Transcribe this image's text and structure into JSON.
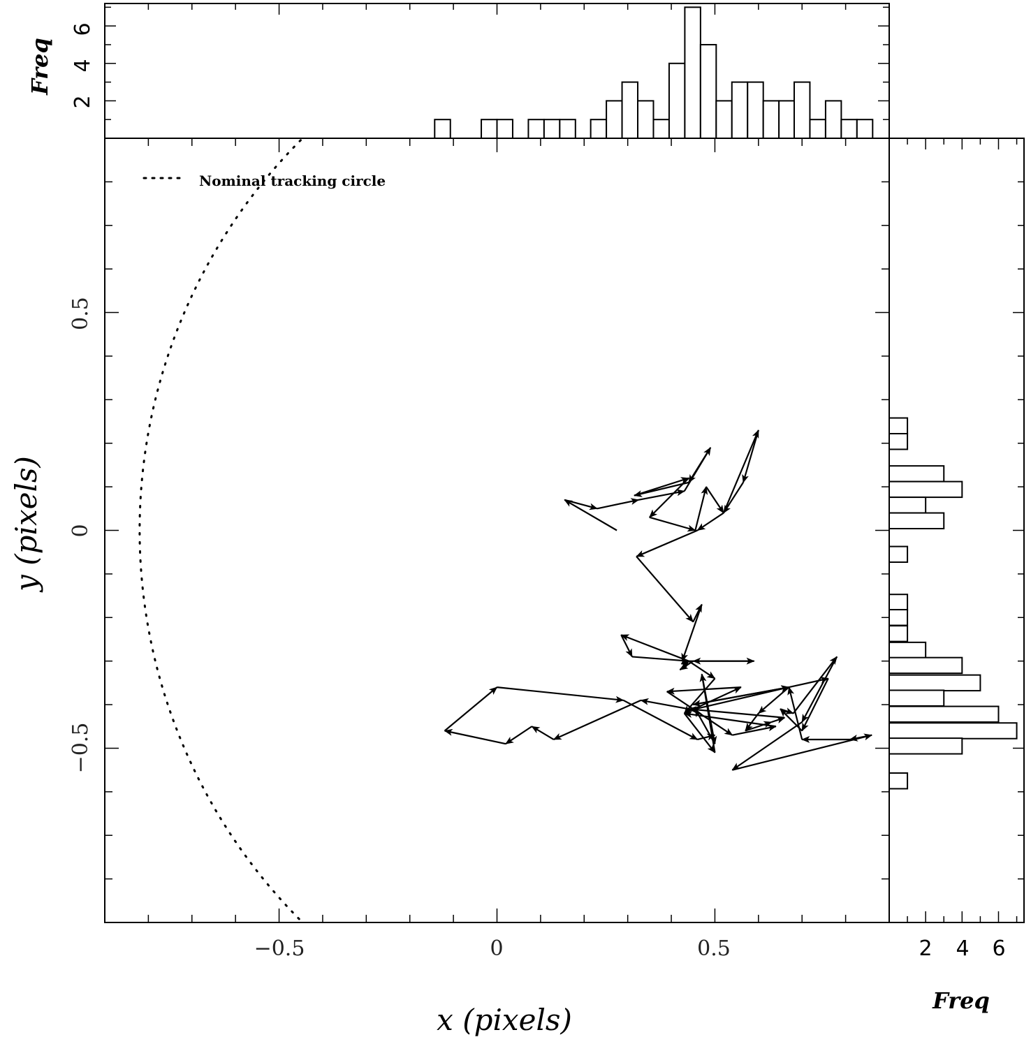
{
  "chart_data": {
    "type": "scatter",
    "title": "",
    "xlabel": "x (pixels)",
    "ylabel": "y (pixels)",
    "xlim": [
      -0.9,
      0.9
    ],
    "ylim": [
      -0.9,
      0.9
    ],
    "x_ticks": [
      {
        "value": -0.5,
        "label": "−0.5"
      },
      {
        "value": 0,
        "label": "0"
      },
      {
        "value": 0.5,
        "label": "0.5"
      }
    ],
    "y_ticks": [
      {
        "value": 0.5,
        "label": "0.5"
      },
      {
        "value": 0,
        "label": "0"
      },
      {
        "value": -0.5,
        "label": "−0.5"
      }
    ],
    "legend": {
      "position": "top-left",
      "entries": [
        {
          "label": "Nominal tracking circle",
          "style": "dotted"
        }
      ]
    },
    "nominal_circle": {
      "center": [
        0.45,
        0
      ],
      "radius": 1.27
    },
    "path": [
      [
        0.275,
        0.0
      ],
      [
        0.155,
        0.07
      ],
      [
        0.23,
        0.05
      ],
      [
        0.325,
        0.07
      ],
      [
        0.43,
        0.09
      ],
      [
        0.49,
        0.19
      ],
      [
        0.44,
        0.11
      ],
      [
        0.315,
        0.08
      ],
      [
        0.44,
        0.12
      ],
      [
        0.35,
        0.03
      ],
      [
        0.455,
        0.0
      ],
      [
        0.48,
        0.1
      ],
      [
        0.52,
        0.04
      ],
      [
        0.6,
        0.23
      ],
      [
        0.565,
        0.11
      ],
      [
        0.52,
        0.04
      ],
      [
        0.46,
        0.0
      ],
      [
        0.32,
        -0.06
      ],
      [
        0.45,
        -0.21
      ],
      [
        0.47,
        -0.17
      ],
      [
        0.425,
        -0.3
      ],
      [
        0.44,
        -0.3
      ],
      [
        0.285,
        -0.24
      ],
      [
        0.31,
        -0.29
      ],
      [
        0.44,
        -0.3
      ],
      [
        0.59,
        -0.3
      ],
      [
        0.45,
        -0.3
      ],
      [
        0.42,
        -0.32
      ],
      [
        0.44,
        -0.3
      ],
      [
        0.5,
        -0.34
      ],
      [
        0.43,
        -0.42
      ],
      [
        0.56,
        -0.36
      ],
      [
        0.39,
        -0.37
      ],
      [
        0.54,
        -0.47
      ],
      [
        0.64,
        -0.45
      ],
      [
        0.43,
        -0.42
      ],
      [
        0.5,
        -0.51
      ],
      [
        0.47,
        -0.33
      ],
      [
        0.5,
        -0.49
      ],
      [
        0.455,
        -0.41
      ],
      [
        0.67,
        -0.36
      ],
      [
        0.76,
        -0.34
      ],
      [
        0.7,
        -0.46
      ],
      [
        0.65,
        -0.41
      ],
      [
        0.68,
        -0.42
      ],
      [
        0.78,
        -0.29
      ],
      [
        0.7,
        -0.44
      ],
      [
        0.54,
        -0.55
      ],
      [
        0.86,
        -0.47
      ],
      [
        0.81,
        -0.48
      ],
      [
        0.7,
        -0.48
      ],
      [
        0.67,
        -0.36
      ],
      [
        0.45,
        -0.4
      ],
      [
        0.67,
        -0.36
      ],
      [
        0.6,
        -0.42
      ],
      [
        0.57,
        -0.46
      ],
      [
        0.63,
        -0.44
      ],
      [
        0.66,
        -0.43
      ],
      [
        0.44,
        -0.41
      ],
      [
        0.33,
        -0.39
      ],
      [
        0.13,
        -0.48
      ],
      [
        0.08,
        -0.45
      ],
      [
        0.02,
        -0.49
      ],
      [
        -0.12,
        -0.46
      ],
      [
        0.0,
        -0.36
      ],
      [
        0.29,
        -0.39
      ],
      [
        0.46,
        -0.48
      ],
      [
        0.5,
        -0.47
      ]
    ],
    "x_histogram": {
      "bin_width": 0.036,
      "bins": [
        {
          "center": -0.125,
          "count": 1
        },
        {
          "center": -0.018,
          "count": 1
        },
        {
          "center": 0.018,
          "count": 1
        },
        {
          "center": 0.09,
          "count": 1
        },
        {
          "center": 0.126,
          "count": 1
        },
        {
          "center": 0.162,
          "count": 1
        },
        {
          "center": 0.233,
          "count": 1
        },
        {
          "center": 0.269,
          "count": 2
        },
        {
          "center": 0.305,
          "count": 3
        },
        {
          "center": 0.341,
          "count": 2
        },
        {
          "center": 0.377,
          "count": 1
        },
        {
          "center": 0.413,
          "count": 4
        },
        {
          "center": 0.449,
          "count": 7
        },
        {
          "center": 0.485,
          "count": 5
        },
        {
          "center": 0.521,
          "count": 2
        },
        {
          "center": 0.557,
          "count": 3
        },
        {
          "center": 0.593,
          "count": 3
        },
        {
          "center": 0.629,
          "count": 2
        },
        {
          "center": 0.665,
          "count": 2
        },
        {
          "center": 0.7,
          "count": 3
        },
        {
          "center": 0.736,
          "count": 1
        },
        {
          "center": 0.772,
          "count": 2
        },
        {
          "center": 0.808,
          "count": 1
        },
        {
          "center": 0.844,
          "count": 1
        }
      ],
      "freq_ticks": [
        2,
        4,
        6
      ],
      "freq_max": 7.2,
      "label": "Freq"
    },
    "y_histogram": {
      "bin_width": 0.036,
      "bins": [
        {
          "center": 0.24,
          "count": 1
        },
        {
          "center": 0.204,
          "count": 1
        },
        {
          "center": 0.13,
          "count": 3
        },
        {
          "center": 0.094,
          "count": 4
        },
        {
          "center": 0.058,
          "count": 2
        },
        {
          "center": 0.022,
          "count": 3
        },
        {
          "center": -0.055,
          "count": 1
        },
        {
          "center": -0.165,
          "count": 1
        },
        {
          "center": -0.2,
          "count": 1
        },
        {
          "center": -0.237,
          "count": 1
        },
        {
          "center": -0.275,
          "count": 2
        },
        {
          "center": -0.31,
          "count": 4
        },
        {
          "center": -0.35,
          "count": 5
        },
        {
          "center": -0.385,
          "count": 3
        },
        {
          "center": -0.422,
          "count": 6
        },
        {
          "center": -0.46,
          "count": 7
        },
        {
          "center": -0.495,
          "count": 4
        },
        {
          "center": -0.575,
          "count": 1
        }
      ],
      "freq_ticks": [
        2,
        4,
        6
      ],
      "freq_max": 7.4,
      "label": "Freq"
    }
  }
}
